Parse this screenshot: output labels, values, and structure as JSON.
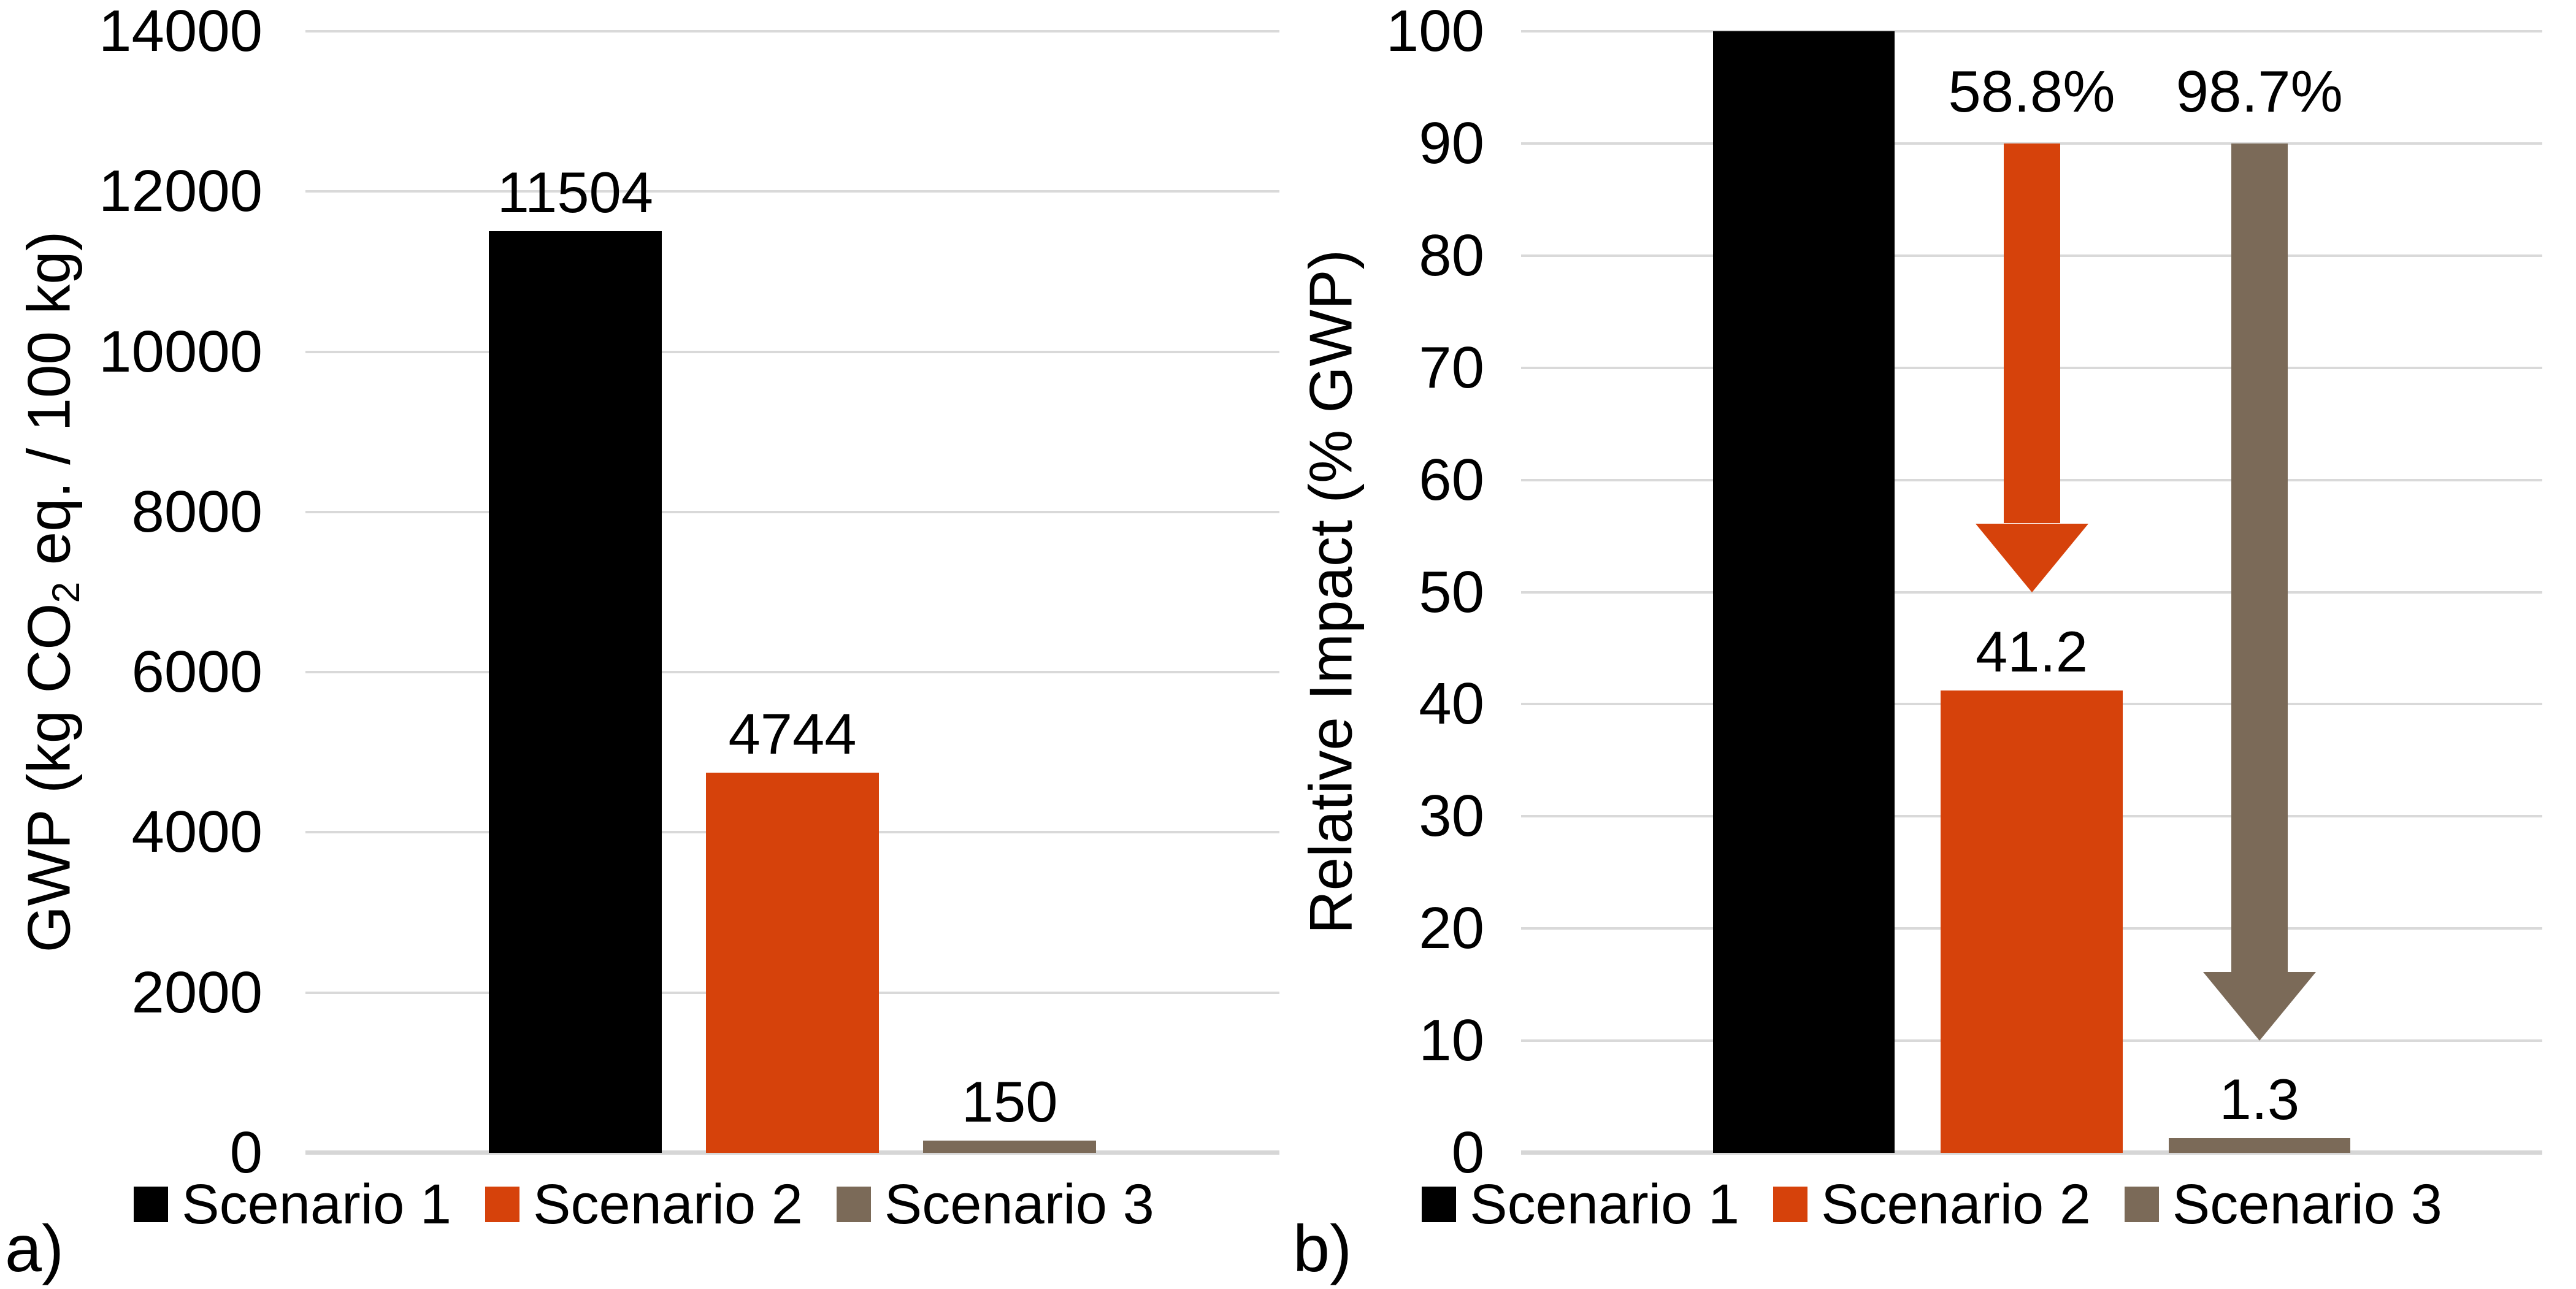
{
  "colors": {
    "scenario1": "#000000",
    "scenario2": "#D6420B",
    "scenario3": "#7B6A58",
    "gridline": "#D9D9D9",
    "axis_line": "#D6D6D6",
    "text": "#000000",
    "background": "#FFFFFF"
  },
  "chart_data": [
    {
      "id": "a",
      "type": "bar",
      "panel_label": "a)",
      "ylabel_parts": {
        "pre": "GWP (kg CO",
        "sub": "2",
        "post": " eq. / 100 kg)"
      },
      "ylabel_plain": "GWP (kg CO2 eq. / 100 kg)",
      "ylim": [
        0,
        14000
      ],
      "ytick_step": 2000,
      "yticks": [
        0,
        2000,
        4000,
        6000,
        8000,
        10000,
        12000,
        14000
      ],
      "grid": "horizontal",
      "legend_position": "bottom",
      "categories": [
        "Scenario 1",
        "Scenario 2",
        "Scenario 3"
      ],
      "series_color_keys": [
        "scenario1",
        "scenario2",
        "scenario3"
      ],
      "values": [
        11504,
        4744,
        150
      ],
      "bar_labels": [
        "11504",
        "4744",
        "150"
      ],
      "legend": [
        "Scenario 1",
        "Scenario 2",
        "Scenario 3"
      ],
      "arrows": []
    },
    {
      "id": "b",
      "type": "bar",
      "panel_label": "b)",
      "ylabel_parts": {
        "pre": "Relative Impact (% GWP)",
        "sub": "",
        "post": ""
      },
      "ylabel_plain": "Relative Impact (% GWP)",
      "ylim": [
        0,
        100
      ],
      "ytick_step": 10,
      "yticks": [
        0,
        10,
        20,
        30,
        40,
        50,
        60,
        70,
        80,
        90,
        100
      ],
      "grid": "horizontal",
      "legend_position": "bottom",
      "categories": [
        "Scenario 1",
        "Scenario 2",
        "Scenario 3"
      ],
      "series_color_keys": [
        "scenario1",
        "scenario2",
        "scenario3"
      ],
      "values": [
        100,
        41.2,
        1.3
      ],
      "bar_labels": [
        "",
        "41.2",
        "1.3"
      ],
      "legend": [
        "Scenario 1",
        "Scenario 2",
        "Scenario 3"
      ],
      "arrows": [
        {
          "label": "58.8%",
          "from_value": 90,
          "tip_value": 50,
          "bar_index": 1,
          "color_key": "scenario2"
        },
        {
          "label": "98.7%",
          "from_value": 90,
          "tip_value": 10,
          "bar_index": 2,
          "color_key": "scenario3"
        }
      ]
    }
  ]
}
